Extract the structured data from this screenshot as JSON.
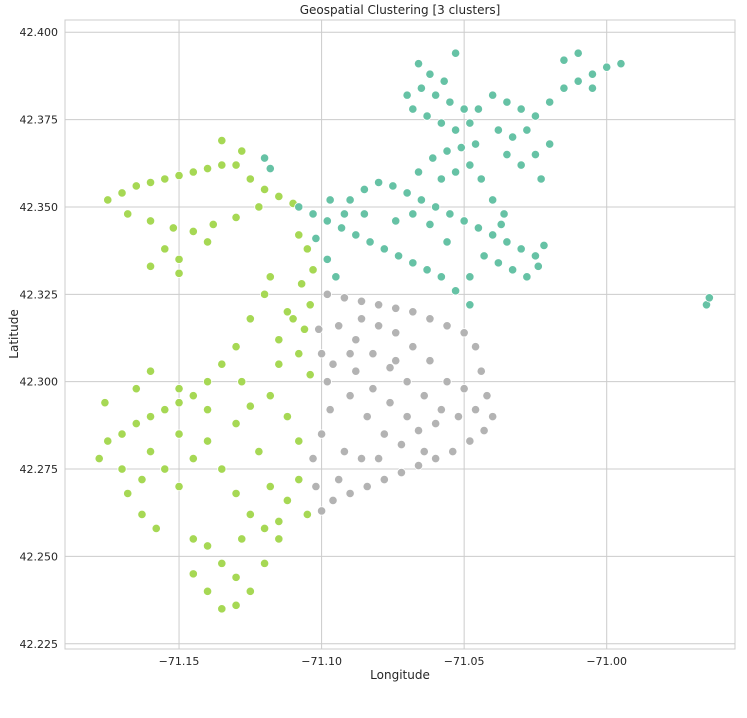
{
  "chart_data": {
    "type": "scatter",
    "title": "Geospatial Clustering [3 clusters]",
    "xlabel": "Longitude",
    "ylabel": "Latitude",
    "xlim": [
      -71.19,
      -70.955
    ],
    "ylim": [
      42.2235,
      42.4035
    ],
    "x_ticks": [
      -71.15,
      -71.1,
      -71.05,
      -71.0
    ],
    "x_tick_labels": [
      "−71.15",
      "−71.10",
      "−71.05",
      "−71.00"
    ],
    "y_ticks": [
      42.225,
      42.25,
      42.275,
      42.3,
      42.325,
      42.35,
      42.375,
      42.4
    ],
    "y_tick_labels": [
      "42.225",
      "42.250",
      "42.275",
      "42.300",
      "42.325",
      "42.350",
      "42.375",
      "42.400"
    ],
    "grid": true,
    "legend": "none",
    "series": [
      {
        "color": "#a6d854",
        "points": [
          [
            -71.175,
            42.352
          ],
          [
            -71.17,
            42.354
          ],
          [
            -71.165,
            42.356
          ],
          [
            -71.16,
            42.357
          ],
          [
            -71.155,
            42.358
          ],
          [
            -71.15,
            42.359
          ],
          [
            -71.145,
            42.36
          ],
          [
            -71.14,
            42.361
          ],
          [
            -71.135,
            42.362
          ],
          [
            -71.13,
            42.362
          ],
          [
            -71.125,
            42.358
          ],
          [
            -71.12,
            42.355
          ],
          [
            -71.115,
            42.353
          ],
          [
            -71.11,
            42.351
          ],
          [
            -71.168,
            42.348
          ],
          [
            -71.16,
            42.346
          ],
          [
            -71.152,
            42.344
          ],
          [
            -71.145,
            42.343
          ],
          [
            -71.138,
            42.345
          ],
          [
            -71.13,
            42.347
          ],
          [
            -71.122,
            42.35
          ],
          [
            -71.155,
            42.338
          ],
          [
            -71.15,
            42.335
          ],
          [
            -71.16,
            42.333
          ],
          [
            -71.15,
            42.331
          ],
          [
            -71.14,
            42.34
          ],
          [
            -71.135,
            42.369
          ],
          [
            -71.128,
            42.366
          ],
          [
            -71.12,
            42.364
          ],
          [
            -71.105,
            42.338
          ],
          [
            -71.103,
            42.332
          ],
          [
            -71.107,
            42.328
          ],
          [
            -71.104,
            42.322
          ],
          [
            -71.106,
            42.315
          ],
          [
            -71.108,
            42.308
          ],
          [
            -71.104,
            42.302
          ],
          [
            -71.11,
            42.318
          ],
          [
            -71.115,
            42.312
          ],
          [
            -71.12,
            42.325
          ],
          [
            -71.125,
            42.318
          ],
          [
            -71.13,
            42.31
          ],
          [
            -71.135,
            42.305
          ],
          [
            -71.14,
            42.3
          ],
          [
            -71.145,
            42.296
          ],
          [
            -71.15,
            42.294
          ],
          [
            -71.155,
            42.292
          ],
          [
            -71.16,
            42.29
          ],
          [
            -71.165,
            42.288
          ],
          [
            -71.17,
            42.285
          ],
          [
            -71.175,
            42.283
          ],
          [
            -71.178,
            42.278
          ],
          [
            -71.176,
            42.294
          ],
          [
            -71.165,
            42.298
          ],
          [
            -71.16,
            42.303
          ],
          [
            -71.15,
            42.298
          ],
          [
            -71.14,
            42.292
          ],
          [
            -71.13,
            42.288
          ],
          [
            -71.125,
            42.293
          ],
          [
            -71.118,
            42.296
          ],
          [
            -71.112,
            42.29
          ],
          [
            -71.108,
            42.283
          ],
          [
            -71.17,
            42.275
          ],
          [
            -71.168,
            42.268
          ],
          [
            -71.163,
            42.262
          ],
          [
            -71.158,
            42.258
          ],
          [
            -71.15,
            42.27
          ],
          [
            -71.145,
            42.278
          ],
          [
            -71.14,
            42.283
          ],
          [
            -71.135,
            42.275
          ],
          [
            -71.13,
            42.268
          ],
          [
            -71.125,
            42.262
          ],
          [
            -71.12,
            42.258
          ],
          [
            -71.115,
            42.255
          ],
          [
            -71.118,
            42.27
          ],
          [
            -71.112,
            42.266
          ],
          [
            -71.108,
            42.272
          ],
          [
            -71.105,
            42.262
          ],
          [
            -71.14,
            42.253
          ],
          [
            -71.135,
            42.248
          ],
          [
            -71.13,
            42.244
          ],
          [
            -71.125,
            42.24
          ],
          [
            -71.13,
            42.236
          ],
          [
            -71.135,
            42.235
          ],
          [
            -71.14,
            42.24
          ],
          [
            -71.145,
            42.245
          ],
          [
            -71.145,
            42.255
          ],
          [
            -71.128,
            42.255
          ],
          [
            -71.12,
            42.248
          ],
          [
            -71.115,
            42.26
          ],
          [
            -71.15,
            42.285
          ],
          [
            -71.16,
            42.28
          ],
          [
            -71.155,
            42.275
          ],
          [
            -71.122,
            42.28
          ],
          [
            -71.128,
            42.3
          ],
          [
            -71.115,
            42.305
          ],
          [
            -71.112,
            42.32
          ],
          [
            -71.118,
            42.33
          ],
          [
            -71.108,
            42.342
          ],
          [
            -71.163,
            42.272
          ]
        ]
      },
      {
        "color": "#66c2a5",
        "points": [
          [
            -71.108,
            42.35
          ],
          [
            -71.103,
            42.348
          ],
          [
            -71.098,
            42.346
          ],
          [
            -71.093,
            42.344
          ],
          [
            -71.088,
            42.342
          ],
          [
            -71.083,
            42.34
          ],
          [
            -71.078,
            42.338
          ],
          [
            -71.073,
            42.336
          ],
          [
            -71.068,
            42.334
          ],
          [
            -71.063,
            42.332
          ],
          [
            -71.058,
            42.33
          ],
          [
            -71.053,
            42.326
          ],
          [
            -71.048,
            42.322
          ],
          [
            -71.102,
            42.341
          ],
          [
            -71.098,
            42.335
          ],
          [
            -71.095,
            42.33
          ],
          [
            -71.09,
            42.352
          ],
          [
            -71.085,
            42.355
          ],
          [
            -71.08,
            42.357
          ],
          [
            -71.075,
            42.356
          ],
          [
            -71.07,
            42.354
          ],
          [
            -71.065,
            42.352
          ],
          [
            -71.06,
            42.35
          ],
          [
            -71.055,
            42.348
          ],
          [
            -71.05,
            42.346
          ],
          [
            -71.045,
            42.344
          ],
          [
            -71.04,
            42.342
          ],
          [
            -71.035,
            42.34
          ],
          [
            -71.03,
            42.338
          ],
          [
            -71.025,
            42.336
          ],
          [
            -71.028,
            42.33
          ],
          [
            -71.033,
            42.332
          ],
          [
            -71.038,
            42.334
          ],
          [
            -71.043,
            42.336
          ],
          [
            -71.048,
            42.33
          ],
          [
            -71.056,
            42.34
          ],
          [
            -71.062,
            42.345
          ],
          [
            -71.066,
            42.36
          ],
          [
            -71.061,
            42.364
          ],
          [
            -71.056,
            42.366
          ],
          [
            -71.051,
            42.367
          ],
          [
            -71.046,
            42.368
          ],
          [
            -71.058,
            42.358
          ],
          [
            -71.053,
            42.36
          ],
          [
            -71.048,
            42.362
          ],
          [
            -71.044,
            42.358
          ],
          [
            -71.04,
            42.352
          ],
          [
            -71.036,
            42.348
          ],
          [
            -71.068,
            42.348
          ],
          [
            -71.074,
            42.346
          ],
          [
            -71.085,
            42.348
          ],
          [
            -71.092,
            42.348
          ],
          [
            -71.097,
            42.352
          ],
          [
            -71.037,
            42.345
          ],
          [
            -71.022,
            42.339
          ],
          [
            -71.024,
            42.333
          ],
          [
            -71.07,
            42.382
          ],
          [
            -71.065,
            42.384
          ],
          [
            -71.06,
            42.382
          ],
          [
            -71.055,
            42.38
          ],
          [
            -71.05,
            42.378
          ],
          [
            -71.048,
            42.374
          ],
          [
            -71.053,
            42.372
          ],
          [
            -71.058,
            42.374
          ],
          [
            -71.063,
            42.376
          ],
          [
            -71.068,
            42.378
          ],
          [
            -71.057,
            42.386
          ],
          [
            -71.062,
            42.388
          ],
          [
            -71.066,
            42.391
          ],
          [
            -71.053,
            42.394
          ],
          [
            -71.045,
            42.378
          ],
          [
            -71.04,
            42.382
          ],
          [
            -71.035,
            42.38
          ],
          [
            -71.03,
            42.378
          ],
          [
            -71.025,
            42.376
          ],
          [
            -71.028,
            42.372
          ],
          [
            -71.033,
            42.37
          ],
          [
            -71.038,
            42.372
          ],
          [
            -71.035,
            42.365
          ],
          [
            -71.03,
            42.362
          ],
          [
            -71.025,
            42.365
          ],
          [
            -71.02,
            42.368
          ],
          [
            -71.023,
            42.358
          ],
          [
            -71.02,
            42.38
          ],
          [
            -71.015,
            42.384
          ],
          [
            -71.01,
            42.386
          ],
          [
            -71.005,
            42.388
          ],
          [
            -71.0,
            42.39
          ],
          [
            -70.995,
            42.391
          ],
          [
            -71.01,
            42.394
          ],
          [
            -71.015,
            42.392
          ],
          [
            -71.005,
            42.384
          ],
          [
            -70.965,
            42.322
          ],
          [
            -70.964,
            42.324
          ],
          [
            -71.118,
            42.361
          ],
          [
            -71.12,
            42.364
          ]
        ]
      },
      {
        "color": "#b3b3b3",
        "points": [
          [
            -71.098,
            42.325
          ],
          [
            -71.092,
            42.324
          ],
          [
            -71.086,
            42.323
          ],
          [
            -71.08,
            42.322
          ],
          [
            -71.074,
            42.321
          ],
          [
            -71.068,
            42.32
          ],
          [
            -71.062,
            42.318
          ],
          [
            -71.056,
            42.316
          ],
          [
            -71.05,
            42.314
          ],
          [
            -71.046,
            42.31
          ],
          [
            -71.044,
            42.303
          ],
          [
            -71.042,
            42.296
          ],
          [
            -71.04,
            42.29
          ],
          [
            -71.043,
            42.286
          ],
          [
            -71.048,
            42.283
          ],
          [
            -71.054,
            42.28
          ],
          [
            -71.06,
            42.278
          ],
          [
            -71.066,
            42.276
          ],
          [
            -71.072,
            42.274
          ],
          [
            -71.078,
            42.272
          ],
          [
            -71.084,
            42.27
          ],
          [
            -71.09,
            42.268
          ],
          [
            -71.096,
            42.266
          ],
          [
            -71.1,
            42.263
          ],
          [
            -71.102,
            42.27
          ],
          [
            -71.103,
            42.278
          ],
          [
            -71.1,
            42.285
          ],
          [
            -71.097,
            42.292
          ],
          [
            -71.098,
            42.3
          ],
          [
            -71.1,
            42.308
          ],
          [
            -71.101,
            42.315
          ],
          [
            -71.094,
            42.316
          ],
          [
            -71.088,
            42.312
          ],
          [
            -71.082,
            42.308
          ],
          [
            -71.076,
            42.304
          ],
          [
            -71.07,
            42.3
          ],
          [
            -71.064,
            42.296
          ],
          [
            -71.058,
            42.292
          ],
          [
            -71.052,
            42.29
          ],
          [
            -71.056,
            42.3
          ],
          [
            -71.062,
            42.306
          ],
          [
            -71.068,
            42.31
          ],
          [
            -71.074,
            42.314
          ],
          [
            -71.08,
            42.316
          ],
          [
            -71.086,
            42.318
          ],
          [
            -71.09,
            42.296
          ],
          [
            -71.084,
            42.29
          ],
          [
            -71.078,
            42.285
          ],
          [
            -71.072,
            42.282
          ],
          [
            -71.066,
            42.286
          ],
          [
            -71.06,
            42.288
          ],
          [
            -71.076,
            42.294
          ],
          [
            -71.092,
            42.28
          ],
          [
            -71.086,
            42.278
          ],
          [
            -71.08,
            42.278
          ],
          [
            -71.094,
            42.272
          ],
          [
            -71.096,
            42.305
          ],
          [
            -71.09,
            42.308
          ],
          [
            -71.05,
            42.298
          ],
          [
            -71.046,
            42.292
          ],
          [
            -71.064,
            42.28
          ],
          [
            -71.07,
            42.29
          ],
          [
            -71.082,
            42.298
          ],
          [
            -71.088,
            42.303
          ],
          [
            -71.074,
            42.306
          ]
        ]
      }
    ]
  }
}
